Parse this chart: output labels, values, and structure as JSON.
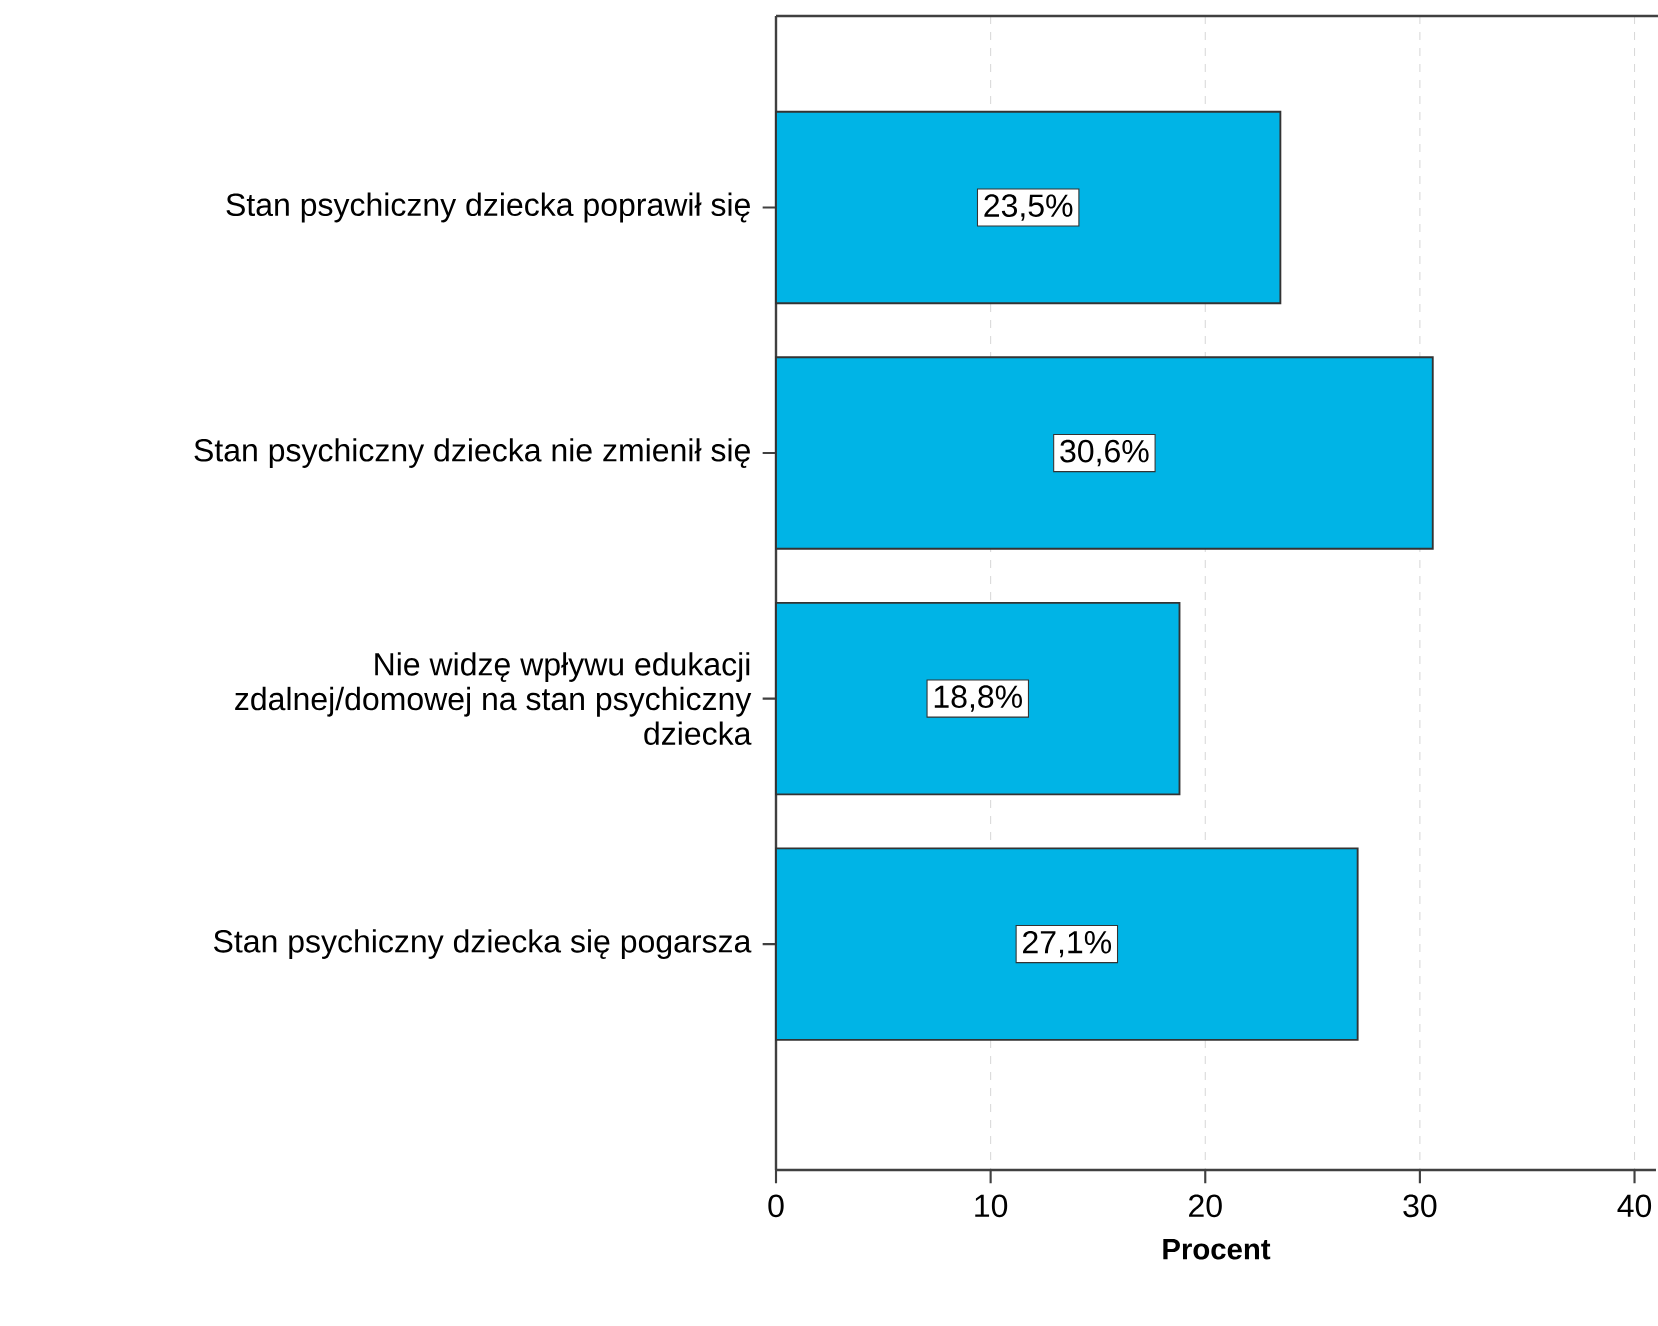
{
  "chart_data": {
    "type": "bar",
    "orientation": "horizontal",
    "categories": [
      "Stan psychiczny dziecka poprawił się",
      "Stan psychiczny dziecka nie zmienił się",
      "Nie widzę wpływu edukacji zdalnej/domowej na stan psychiczny dziecka",
      "Stan psychiczny dziecka się pogarsza"
    ],
    "values": [
      23.5,
      30.6,
      18.8,
      27.1
    ],
    "value_labels": [
      "23,5%",
      "30,6%",
      "18,8%",
      "27,1%"
    ],
    "color": "#00b4e6",
    "xlim": [
      0,
      41
    ],
    "xticks": [
      0,
      10,
      20,
      30,
      40
    ],
    "xlabel": "Procent",
    "grid": "x"
  }
}
